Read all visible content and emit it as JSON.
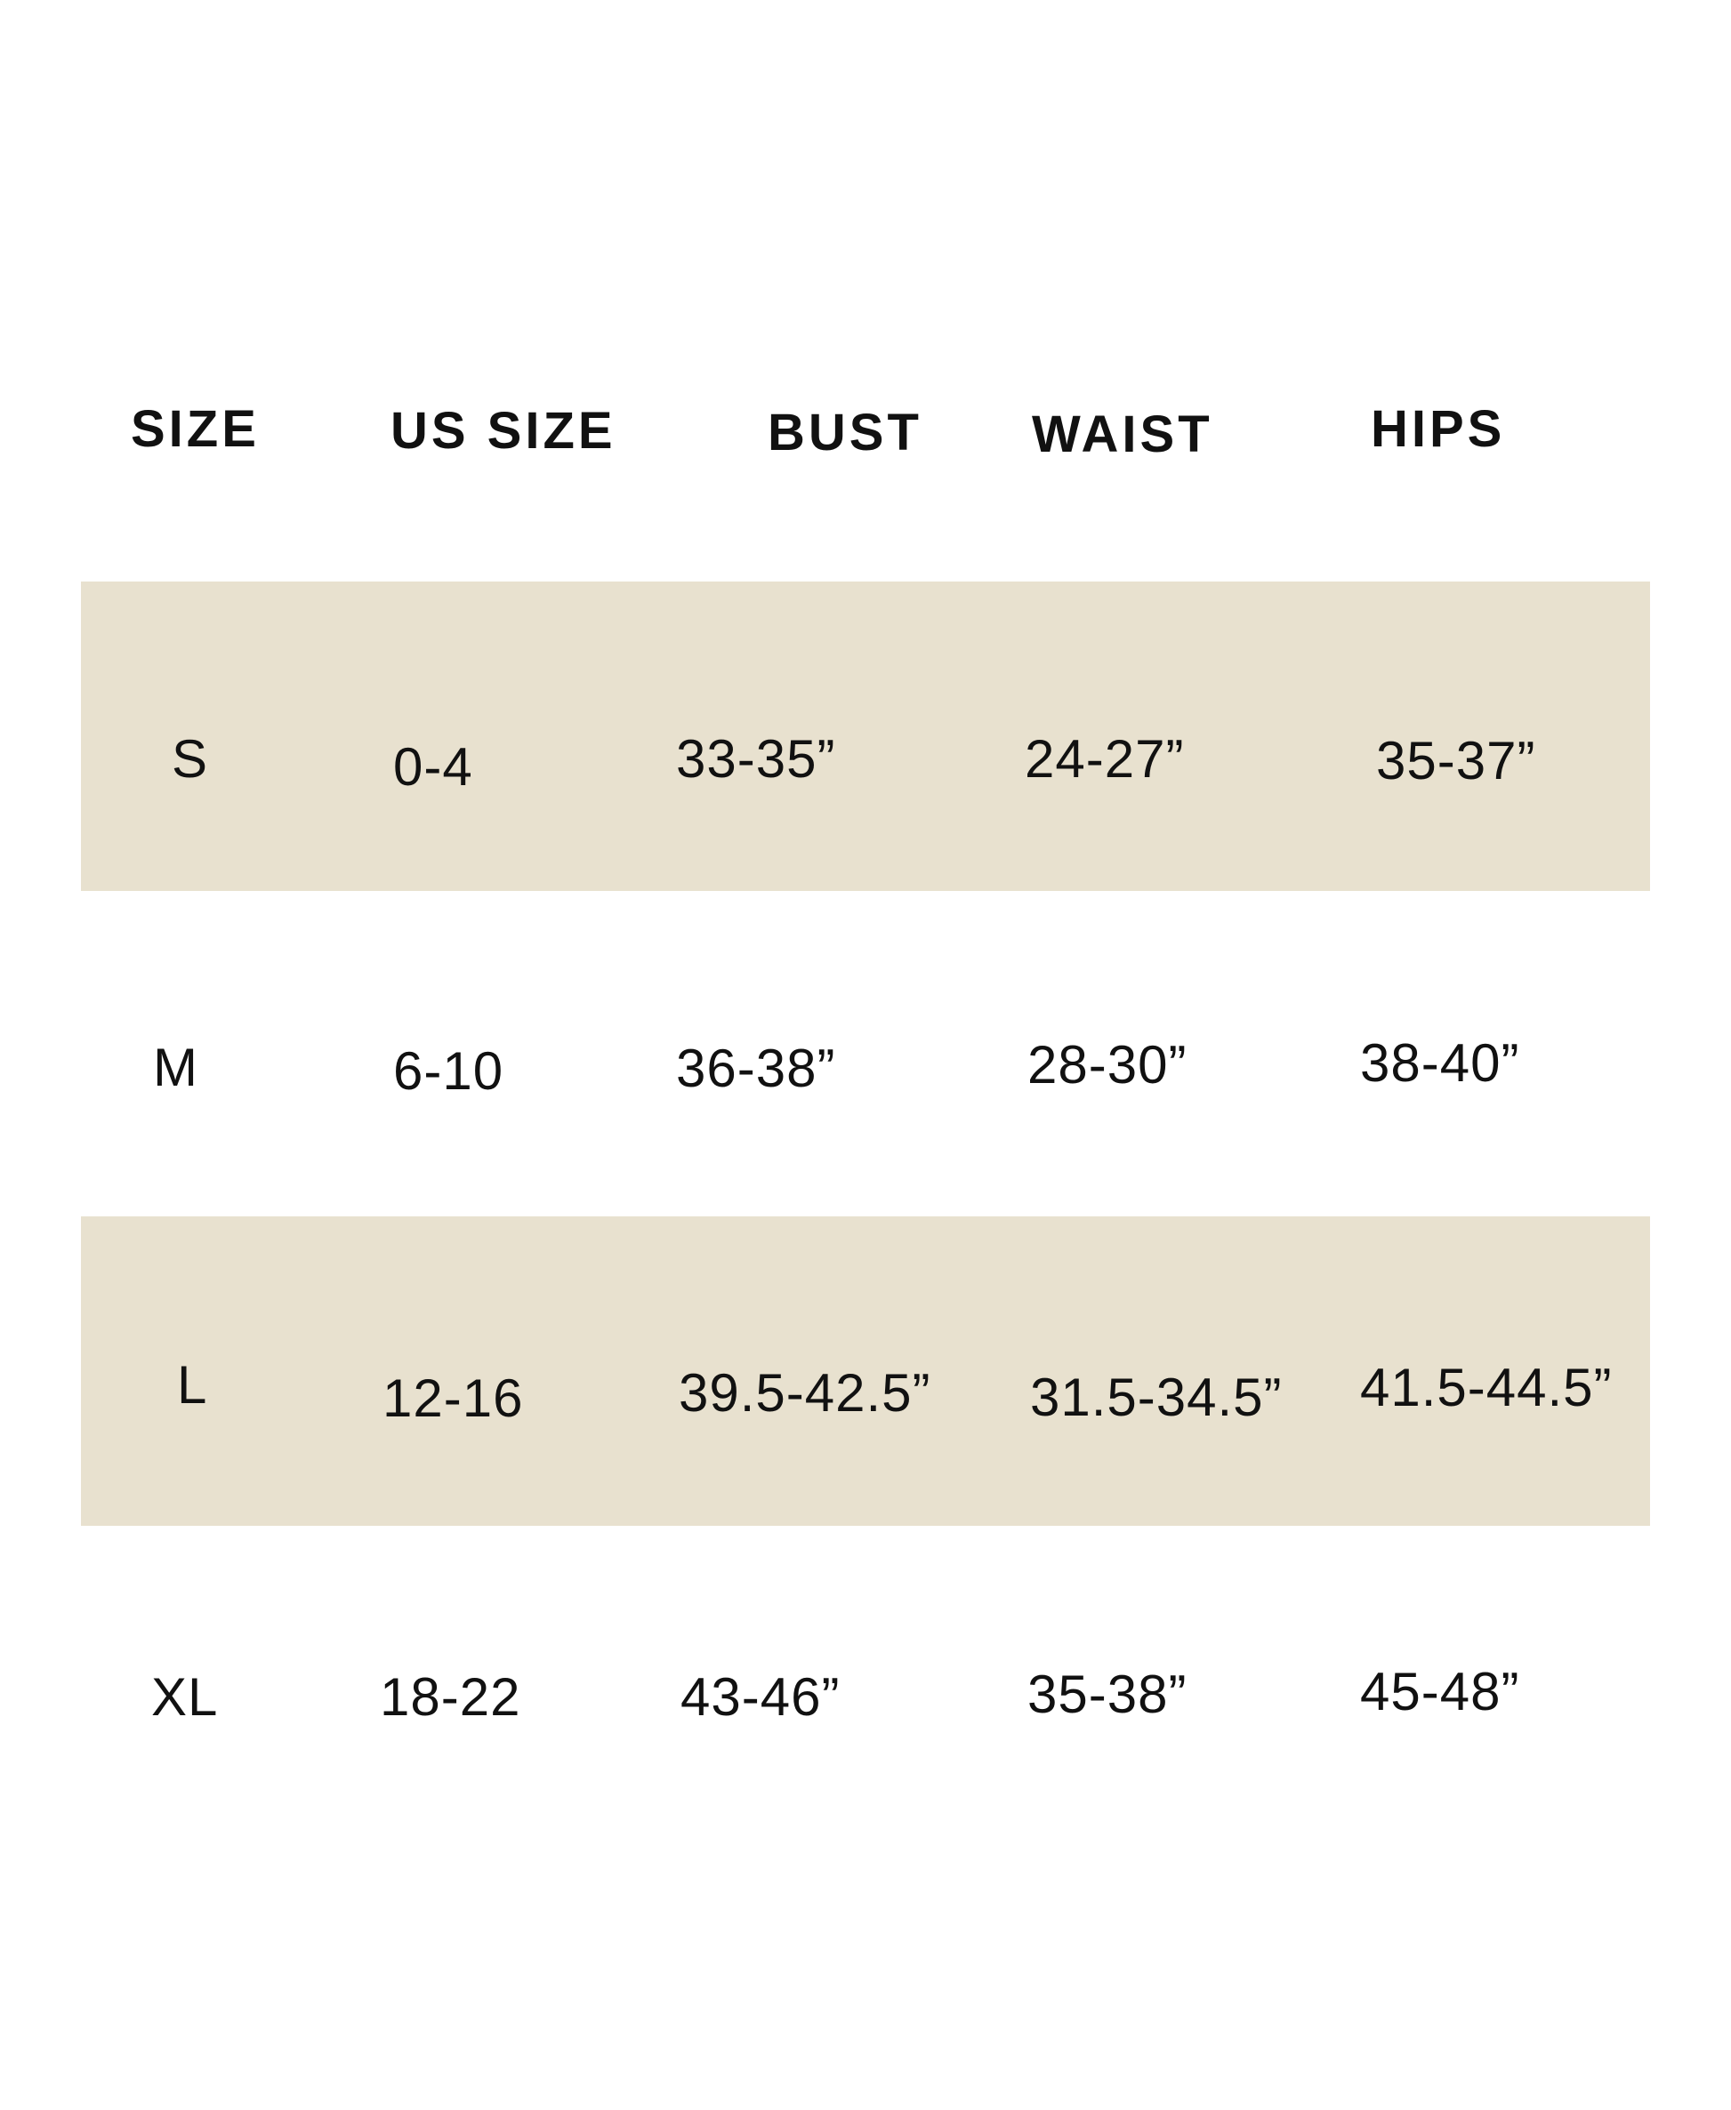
{
  "colors": {
    "row_band": "#E8E1CF",
    "text": "#111111",
    "background": "#ffffff"
  },
  "table": {
    "headers": [
      "SIZE",
      "US SIZE",
      "BUST",
      "WAIST",
      "HIPS"
    ],
    "rows": [
      [
        "S",
        "0-4",
        "33-35”",
        "24-27”",
        "35-37”"
      ],
      [
        "M",
        "6-10",
        "36-38”",
        "28-30”",
        "38-40”"
      ],
      [
        "L",
        "12-16",
        "39.5-42.5”",
        "31.5-34.5”",
        "41.5-44.5”"
      ],
      [
        "XL",
        "18-22",
        "43-46”",
        "35-38”",
        "45-48”"
      ]
    ]
  }
}
